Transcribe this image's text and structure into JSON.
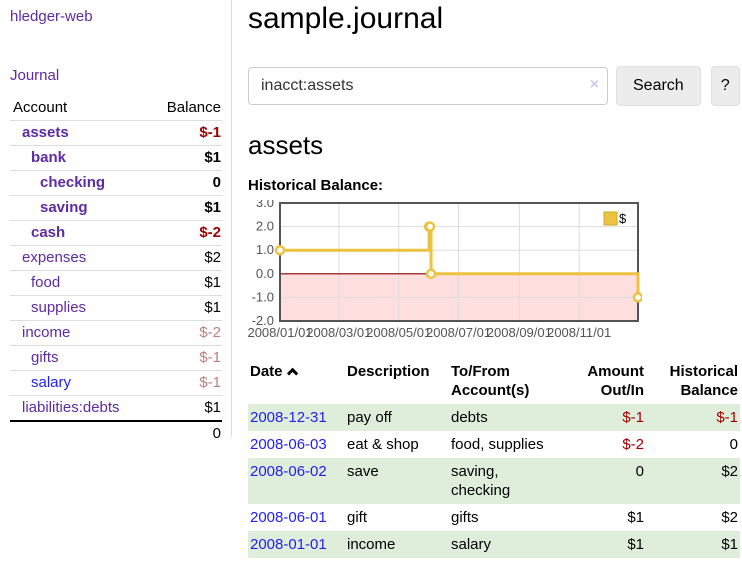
{
  "app": {
    "brand": "hledger-web",
    "nav_journal": "Journal"
  },
  "sidebar": {
    "headers": {
      "account": "Account",
      "balance": "Balance"
    },
    "accounts": [
      {
        "name": "assets",
        "depth": 1,
        "bold": true,
        "balance": "$-1",
        "tone": "neg"
      },
      {
        "name": "bank",
        "depth": 2,
        "bold": true,
        "balance": "$1",
        "tone": ""
      },
      {
        "name": "checking",
        "depth": 3,
        "bold": true,
        "balance": "0",
        "tone": ""
      },
      {
        "name": "saving",
        "depth": 3,
        "bold": true,
        "balance": "$1",
        "tone": ""
      },
      {
        "name": "cash",
        "depth": 2,
        "bold": true,
        "balance": "$-2",
        "tone": "neg"
      },
      {
        "name": "expenses",
        "depth": 1,
        "bold": false,
        "balance": "$2",
        "tone": ""
      },
      {
        "name": "food",
        "depth": 2,
        "bold": false,
        "balance": "$1",
        "tone": ""
      },
      {
        "name": "supplies",
        "depth": 2,
        "bold": false,
        "balance": "$1",
        "tone": ""
      },
      {
        "name": "income",
        "depth": 1,
        "bold": false,
        "balance": "$-2",
        "tone": "negl"
      },
      {
        "name": "gifts",
        "depth": 2,
        "bold": false,
        "balance": "$-1",
        "tone": "negl"
      },
      {
        "name": "salary",
        "depth": 2,
        "bold": false,
        "balance": "$-1",
        "tone": "negl",
        "link_tone": "blue"
      },
      {
        "name": "liabilities:debts",
        "depth": 1,
        "bold": false,
        "balance": "$1",
        "tone": ""
      }
    ],
    "total": "0"
  },
  "header": {
    "title": "sample.journal"
  },
  "search": {
    "value": "inacct:assets",
    "clear_icon": "×",
    "button_label": "Search",
    "help_label": "?"
  },
  "account_page": {
    "heading": "assets",
    "chart_label": "Historical Balance:"
  },
  "chart_data": {
    "type": "line",
    "step": true,
    "title": "Historical Balance:",
    "series": [
      {
        "name": "$",
        "color": "#edc240",
        "points": [
          [
            "2008-01-01",
            1
          ],
          [
            "2008-06-01",
            2
          ],
          [
            "2008-06-02",
            2
          ],
          [
            "2008-06-03",
            0
          ],
          [
            "2008-12-31",
            -1
          ]
        ]
      }
    ],
    "x_range": [
      "2008-01-01",
      "2008-12-31"
    ],
    "x_ticks": [
      "2008/01/01",
      "2008/03/01",
      "2008/05/01",
      "2008/07/01",
      "2008/09/01",
      "2008/11/01"
    ],
    "y_ticks": [
      "3.0",
      "2.0",
      "1.0",
      "0.0",
      "-1.0",
      "-2.0"
    ],
    "ylim": [
      -2,
      3
    ],
    "grid": true,
    "legend_position": "top-right",
    "grid_color": "#dddddd",
    "border_color": "#545454",
    "zero_line_color": "#8b0000",
    "negative_region_color": "#ffdede"
  },
  "register": {
    "columns": [
      {
        "line1": "Date",
        "line2": "",
        "align": "l",
        "sorted": "ascending"
      },
      {
        "line1": "Description",
        "line2": "",
        "align": "l"
      },
      {
        "line1": "To/From",
        "line2": "Account(s)",
        "align": "l"
      },
      {
        "line1": "Amount",
        "line2": "Out/In",
        "align": "r"
      },
      {
        "line1": "Historical",
        "line2": "Balance",
        "align": "r"
      }
    ],
    "rows": [
      {
        "date": "2008-12-31",
        "description": "pay off",
        "accounts": "debts",
        "amount": "$-1",
        "amount_negative": true,
        "balance": "$-1",
        "balance_negative": true
      },
      {
        "date": "2008-06-03",
        "description": "eat & shop",
        "accounts": "food, supplies",
        "amount": "$-2",
        "amount_negative": true,
        "balance": "0",
        "balance_negative": false
      },
      {
        "date": "2008-06-02",
        "description": "save",
        "accounts": "saving, checking",
        "amount": "0",
        "amount_negative": false,
        "balance": "$2",
        "balance_negative": false
      },
      {
        "date": "2008-06-01",
        "description": "gift",
        "accounts": "gifts",
        "amount": "$1",
        "amount_negative": false,
        "balance": "$2",
        "balance_negative": false
      },
      {
        "date": "2008-01-01",
        "description": "income",
        "accounts": "salary",
        "amount": "$1",
        "amount_negative": false,
        "balance": "$1",
        "balance_negative": false
      }
    ]
  },
  "colors": {
    "link_purple": "#5e2ba0",
    "link_blue": "#2222ee",
    "negative_strong": "#a10000",
    "negative_light": "#c17e7e",
    "row_stripe_green": "#deeedb",
    "button_bg": "#ececec"
  }
}
